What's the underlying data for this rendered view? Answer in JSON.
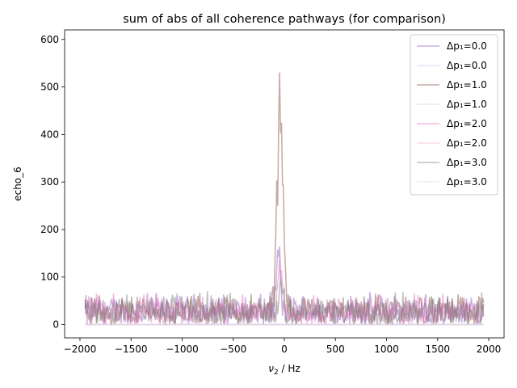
{
  "chart_data": {
    "type": "line",
    "title": "sum of abs of all coherence pathways (for comparison)",
    "xlabel": "ν₂ / Hz",
    "ylabel": "echo_6",
    "xlim": [
      -2150,
      2150
    ],
    "ylim": [
      -28,
      620
    ],
    "xticks": [
      -2000,
      -1500,
      -1000,
      -500,
      0,
      500,
      1000,
      1500,
      2000
    ],
    "xtick_labels": [
      "−2000",
      "−1500",
      "−1000",
      "−500",
      "0",
      "500",
      "1000",
      "1500",
      "2000"
    ],
    "yticks": [
      0,
      100,
      200,
      300,
      400,
      500,
      600
    ],
    "ytick_labels": [
      "0",
      "100",
      "200",
      "300",
      "400",
      "500",
      "600"
    ],
    "legend_position": "top-right",
    "series": [
      {
        "name": "Δp₁=0.0",
        "color": "#9467bd",
        "opacity": 0.5,
        "kind": "noise",
        "peak": {
          "x": -60,
          "height": 150,
          "width": 20
        }
      },
      {
        "name": "Δp₁=0.0",
        "color": "#c5c5f5",
        "opacity": 0.5,
        "kind": "flat"
      },
      {
        "name": "Δp₁=1.0",
        "color": "#8c564b",
        "opacity": 0.5,
        "kind": "noise",
        "peak": {
          "x": -40,
          "height": 590,
          "width": 28
        }
      },
      {
        "name": "Δp₁=1.0",
        "color": "#cfcfe6",
        "opacity": 0.5,
        "kind": "flat"
      },
      {
        "name": "Δp₁=2.0",
        "color": "#e377c2",
        "opacity": 0.5,
        "kind": "noise",
        "peak": {
          "x": -40,
          "height": 130,
          "width": 22
        }
      },
      {
        "name": "Δp₁=2.0",
        "color": "#f7b6d2",
        "opacity": 0.5,
        "kind": "flat"
      },
      {
        "name": "Δp₁=3.0",
        "color": "#7f7f7f",
        "opacity": 0.5,
        "kind": "noise",
        "peak": {
          "x": -30,
          "height": 80,
          "width": 18
        }
      },
      {
        "name": "Δp₁=3.0",
        "color": "#dcdcea",
        "opacity": 0.5,
        "kind": "flat"
      }
    ],
    "x_range_data": [
      -1950,
      1950
    ],
    "noise_level": {
      "mean": 27,
      "spread": 30
    }
  }
}
